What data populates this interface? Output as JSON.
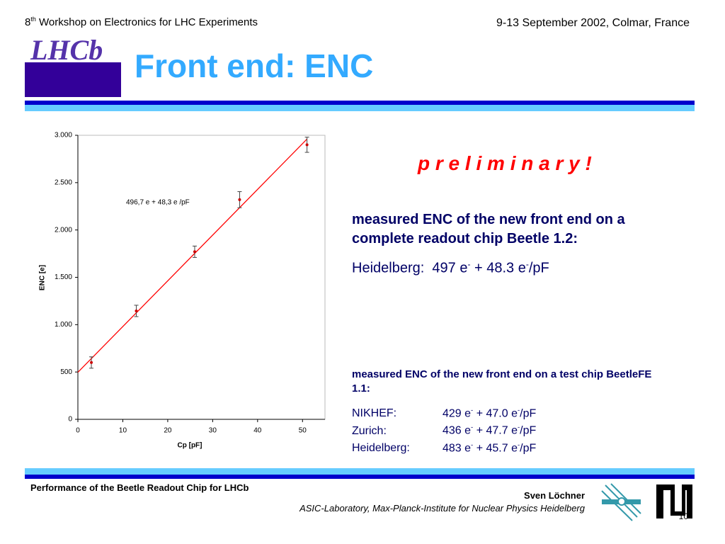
{
  "header": {
    "left_pre": "8",
    "left_sup": "th",
    "left_post": " Workshop on Electronics for LHC Experiments",
    "right": "9-13 September 2002, Colmar, France"
  },
  "logo": "LHCb",
  "title": "Front end: ENC",
  "chart_data": {
    "type": "scatter",
    "x_label": "Cp [pF]",
    "y_label": "ENC [e]",
    "annotation": "496,7 e  + 48,3 e /pF",
    "xlim": [
      0,
      55
    ],
    "xticks": [
      0,
      10,
      20,
      30,
      40,
      50
    ],
    "ylim": [
      0,
      3000
    ],
    "yticks": [
      0,
      500,
      {
        "value": 1000,
        "label": "1.000"
      },
      {
        "value": 1500,
        "label": "1.500"
      },
      {
        "value": 2000,
        "label": "2.000"
      },
      {
        "value": 2500,
        "label": "2.500"
      },
      {
        "value": 3000,
        "label": "3.000"
      }
    ],
    "series": [
      {
        "x": [
          3,
          13,
          26,
          36,
          51
        ],
        "values": [
          600,
          1145,
          1770,
          2320,
          2900
        ],
        "errors": [
          60,
          60,
          60,
          85,
          80
        ],
        "color": "#cc0000"
      }
    ],
    "trendline": {
      "x": [
        0,
        51
      ],
      "values": [
        497,
        2960
      ],
      "color": "#ff0000"
    }
  },
  "preliminary": "p r e l i m i n a r y !",
  "block1": {
    "heading": "measured ENC of the new front end on a complete readout chip Beetle 1.2:",
    "line": [
      "Heidelberg:  497 e",
      "-",
      " + 48.3 e",
      "-",
      "/pF"
    ]
  },
  "block2": {
    "heading": "measured ENC of the new front end on a test chip BeetleFE 1.1:",
    "rows": [
      [
        "NIKHEF:",
        "429 e",
        "-",
        " + 47.0 e",
        "-",
        "/pF"
      ],
      [
        "Zurich:",
        "436 e",
        "-",
        " + 47.7 e",
        "-",
        "/pF"
      ],
      [
        "Heidelberg:",
        "483 e",
        "-",
        " + 45.7 e",
        "-",
        "/pF"
      ]
    ]
  },
  "footer": {
    "left": "Performance of the Beetle Readout Chip for LHCb",
    "author": "Sven Löchner",
    "institute": "ASIC-Laboratory, Max-Planck-Institute for Nuclear Physics Heidelberg",
    "page": "10"
  }
}
